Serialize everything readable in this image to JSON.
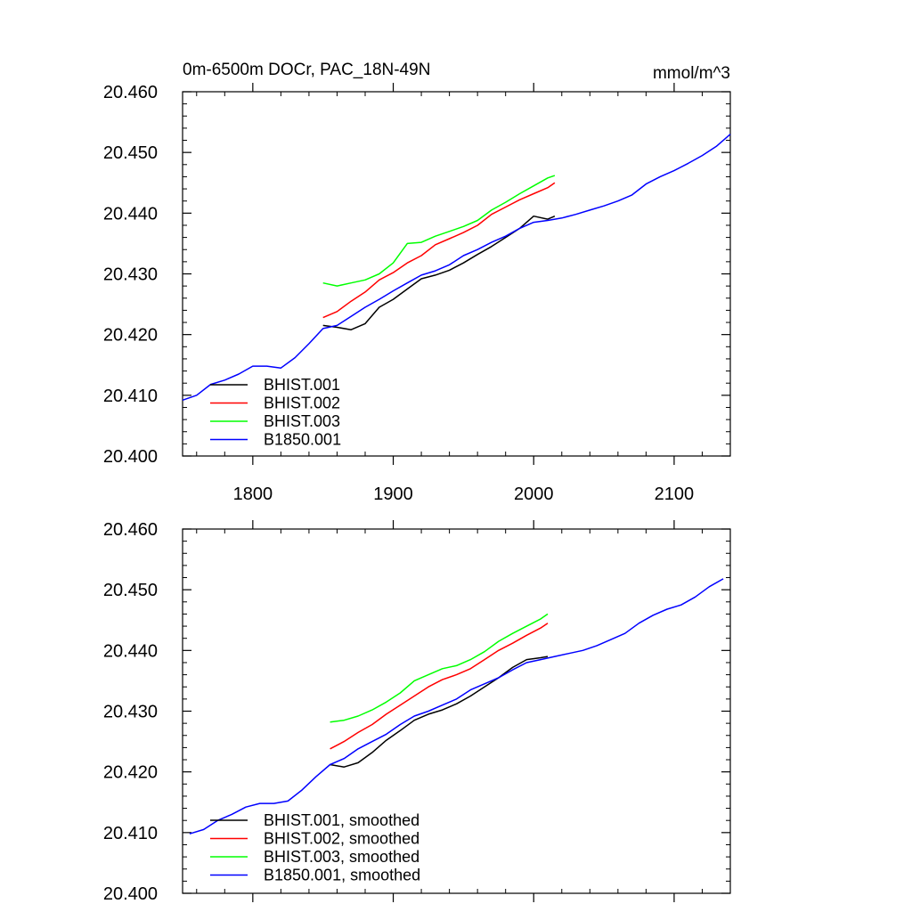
{
  "chart_data": [
    {
      "type": "line",
      "title": "0m-6500m DOCr, PAC_18N-49N",
      "units": "mmol/m^3",
      "xlim": [
        1750,
        2140
      ],
      "ylim": [
        20.4,
        20.46
      ],
      "x_ticks": [
        1800,
        1900,
        2000,
        2100
      ],
      "x_tick_labels": [
        "1800",
        "1900",
        "2000",
        "2100"
      ],
      "y_ticks": [
        20.4,
        20.41,
        20.42,
        20.43,
        20.44,
        20.45,
        20.46
      ],
      "y_tick_labels": [
        "20.400",
        "20.410",
        "20.420",
        "20.430",
        "20.440",
        "20.450",
        "20.460"
      ],
      "legend_position": "bottom-left",
      "series": [
        {
          "name": "BHIST.001",
          "color": "#000000",
          "x": [
            1850,
            1860,
            1870,
            1880,
            1890,
            1900,
            1910,
            1920,
            1930,
            1940,
            1950,
            1960,
            1970,
            1980,
            1990,
            2000,
            2010,
            2015
          ],
          "y": [
            20.4215,
            20.4212,
            20.4208,
            20.4218,
            20.4245,
            20.4258,
            20.4275,
            20.4292,
            20.4298,
            20.4306,
            20.4318,
            20.4332,
            20.4345,
            20.436,
            20.4375,
            20.4395,
            20.439,
            20.4395
          ]
        },
        {
          "name": "BHIST.002",
          "color": "#ff0000",
          "x": [
            1850,
            1860,
            1870,
            1880,
            1890,
            1900,
            1910,
            1920,
            1930,
            1940,
            1950,
            1960,
            1970,
            1980,
            1990,
            2000,
            2010,
            2015
          ],
          "y": [
            20.4228,
            20.4238,
            20.4255,
            20.427,
            20.429,
            20.4302,
            20.4318,
            20.433,
            20.4348,
            20.4358,
            20.4368,
            20.438,
            20.4398,
            20.441,
            20.4422,
            20.4432,
            20.4442,
            20.445
          ]
        },
        {
          "name": "BHIST.003",
          "color": "#00ff00",
          "x": [
            1850,
            1860,
            1870,
            1880,
            1890,
            1900,
            1910,
            1920,
            1930,
            1940,
            1950,
            1960,
            1970,
            1980,
            1990,
            2000,
            2010,
            2015
          ],
          "y": [
            20.4285,
            20.428,
            20.4285,
            20.429,
            20.43,
            20.4318,
            20.435,
            20.4352,
            20.4362,
            20.437,
            20.4378,
            20.4388,
            20.4405,
            20.4418,
            20.4432,
            20.4445,
            20.4458,
            20.4462
          ]
        },
        {
          "name": "B1850.001",
          "color": "#0000ff",
          "x": [
            1750,
            1760,
            1770,
            1780,
            1790,
            1800,
            1810,
            1820,
            1830,
            1840,
            1850,
            1860,
            1870,
            1880,
            1890,
            1900,
            1910,
            1920,
            1930,
            1940,
            1950,
            1960,
            1970,
            1980,
            1990,
            2000,
            2010,
            2020,
            2030,
            2040,
            2050,
            2060,
            2070,
            2080,
            2090,
            2100,
            2110,
            2120,
            2130,
            2140
          ],
          "y": [
            20.4092,
            20.41,
            20.4118,
            20.4125,
            20.4135,
            20.4148,
            20.4148,
            20.4145,
            20.4162,
            20.4185,
            20.421,
            20.4215,
            20.423,
            20.4245,
            20.4258,
            20.4272,
            20.4285,
            20.4298,
            20.4305,
            20.4315,
            20.433,
            20.434,
            20.4352,
            20.4362,
            20.4375,
            20.4385,
            20.4388,
            20.4392,
            20.4398,
            20.4405,
            20.4412,
            20.442,
            20.443,
            20.4448,
            20.446,
            20.447,
            20.4482,
            20.4495,
            20.451,
            20.453
          ]
        }
      ]
    },
    {
      "type": "line",
      "xlim": [
        1750,
        2140
      ],
      "ylim": [
        20.4,
        20.46
      ],
      "x_ticks": [
        1800,
        1900,
        2000,
        2100
      ],
      "y_ticks": [
        20.4,
        20.41,
        20.42,
        20.43,
        20.44,
        20.45,
        20.46
      ],
      "y_tick_labels": [
        "20.400",
        "20.410",
        "20.420",
        "20.430",
        "20.440",
        "20.450",
        "20.460"
      ],
      "legend_position": "bottom-left",
      "series": [
        {
          "name": "BHIST.001, smoothed",
          "color": "#000000",
          "x": [
            1855,
            1865,
            1875,
            1885,
            1895,
            1905,
            1915,
            1925,
            1935,
            1945,
            1955,
            1965,
            1975,
            1985,
            1995,
            2005,
            2010
          ],
          "y": [
            20.4212,
            20.4208,
            20.4215,
            20.4232,
            20.4252,
            20.4268,
            20.4285,
            20.4295,
            20.4302,
            20.4312,
            20.4325,
            20.434,
            20.4355,
            20.4372,
            20.4385,
            20.4388,
            20.439
          ]
        },
        {
          "name": "BHIST.002, smoothed",
          "color": "#ff0000",
          "x": [
            1855,
            1865,
            1875,
            1885,
            1895,
            1905,
            1915,
            1925,
            1935,
            1945,
            1955,
            1965,
            1975,
            1985,
            1995,
            2005,
            2010
          ],
          "y": [
            20.4238,
            20.425,
            20.4265,
            20.4278,
            20.4295,
            20.431,
            20.4325,
            20.434,
            20.4352,
            20.436,
            20.437,
            20.4385,
            20.44,
            20.4412,
            20.4425,
            20.4437,
            20.4445
          ]
        },
        {
          "name": "BHIST.003, smoothed",
          "color": "#00ff00",
          "x": [
            1855,
            1865,
            1875,
            1885,
            1895,
            1905,
            1915,
            1925,
            1935,
            1945,
            1955,
            1965,
            1975,
            1985,
            1995,
            2005,
            2010
          ],
          "y": [
            20.4282,
            20.4285,
            20.4292,
            20.4302,
            20.4315,
            20.433,
            20.435,
            20.436,
            20.437,
            20.4375,
            20.4385,
            20.4398,
            20.4415,
            20.4428,
            20.444,
            20.4452,
            20.446
          ]
        },
        {
          "name": "B1850.001, smoothed",
          "color": "#0000ff",
          "x": [
            1755,
            1765,
            1775,
            1785,
            1795,
            1805,
            1815,
            1825,
            1835,
            1845,
            1855,
            1865,
            1875,
            1885,
            1895,
            1905,
            1915,
            1925,
            1935,
            1945,
            1955,
            1965,
            1975,
            1985,
            1995,
            2005,
            2015,
            2025,
            2035,
            2045,
            2055,
            2065,
            2075,
            2085,
            2095,
            2105,
            2115,
            2125,
            2135
          ],
          "y": [
            20.4098,
            20.4105,
            20.412,
            20.413,
            20.4142,
            20.4148,
            20.4148,
            20.4152,
            20.417,
            20.4192,
            20.4212,
            20.4222,
            20.4238,
            20.425,
            20.4262,
            20.4278,
            20.4292,
            20.43,
            20.431,
            20.432,
            20.4335,
            20.4345,
            20.4355,
            20.4368,
            20.438,
            20.4385,
            20.439,
            20.4395,
            20.44,
            20.4408,
            20.4418,
            20.4428,
            20.4445,
            20.4458,
            20.4468,
            20.4475,
            20.4488,
            20.4505,
            20.4518
          ]
        }
      ]
    }
  ]
}
